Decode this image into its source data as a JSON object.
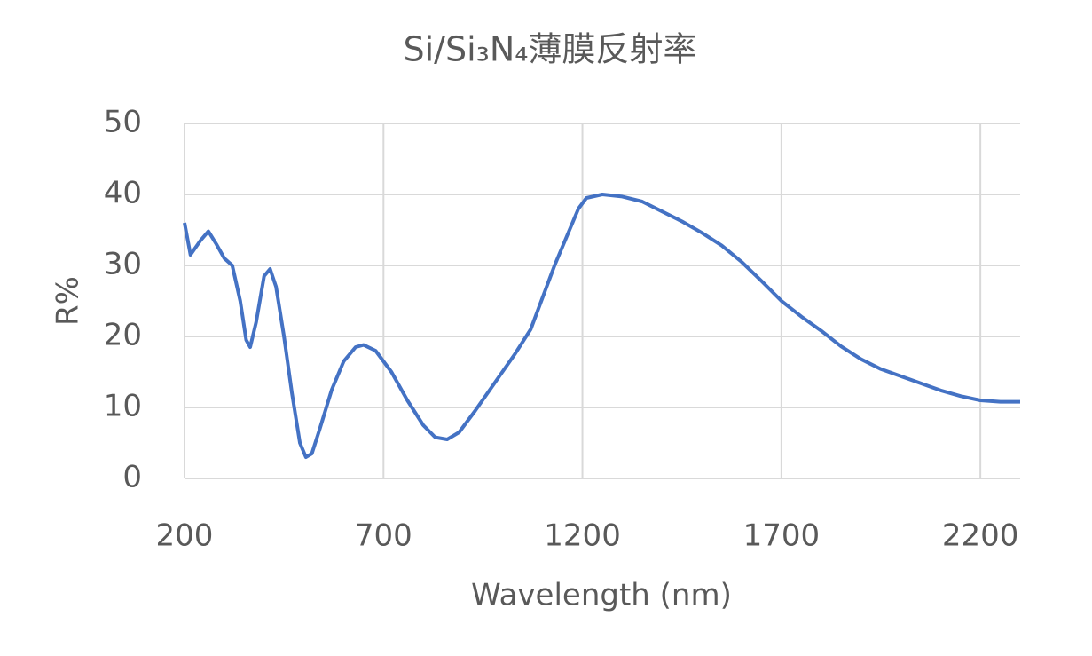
{
  "chart_data": {
    "type": "line",
    "title": "Si/Si₃N₄薄膜反射率",
    "x_label": "Wavelength (nm)",
    "y_label": "R%",
    "x": [
      200,
      215,
      240,
      260,
      280,
      300,
      320,
      340,
      355,
      365,
      380,
      400,
      415,
      430,
      450,
      470,
      490,
      505,
      520,
      540,
      570,
      600,
      630,
      650,
      680,
      720,
      760,
      800,
      830,
      860,
      890,
      930,
      980,
      1030,
      1070,
      1100,
      1130,
      1160,
      1190,
      1210,
      1250,
      1300,
      1350,
      1400,
      1450,
      1500,
      1550,
      1600,
      1650,
      1700,
      1750,
      1800,
      1850,
      1900,
      1950,
      2000,
      2050,
      2100,
      2150,
      2200,
      2250,
      2300
    ],
    "series": [
      {
        "name": "R%",
        "color": "#4472c4",
        "values": [
          36,
          31.5,
          33.5,
          34.8,
          33,
          31,
          30,
          25,
          19.5,
          18.5,
          22,
          28.5,
          29.5,
          27,
          20,
          12,
          5,
          3,
          3.5,
          7,
          12.5,
          16.5,
          18.5,
          18.8,
          18,
          15,
          11,
          7.5,
          5.8,
          5.5,
          6.5,
          9.5,
          13.5,
          17.5,
          21,
          25.5,
          30,
          34,
          38,
          39.5,
          40,
          39.7,
          39,
          37.6,
          36.2,
          34.6,
          32.8,
          30.5,
          27.8,
          25,
          22.8,
          20.8,
          18.6,
          16.8,
          15.4,
          14.4,
          13.4,
          12.4,
          11.6,
          11,
          10.8,
          10.8
        ]
      }
    ],
    "xlim": [
      200,
      2300
    ],
    "xticks": [
      200,
      700,
      1200,
      1700,
      2200
    ],
    "ylim": [
      0,
      50
    ],
    "yticks": [
      0,
      10,
      20,
      30,
      40,
      50
    ],
    "grid": true
  }
}
